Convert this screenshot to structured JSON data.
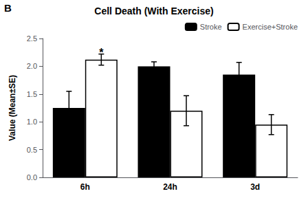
{
  "chart_data": {
    "type": "bar",
    "title": "Cell Death (With Exercise)",
    "ylabel": "Value (Mean±SE)",
    "categories": [
      "6h",
      "24h",
      "3d"
    ],
    "series": [
      {
        "name": "Stroke",
        "color": "#000000",
        "values": [
          1.25,
          2.0,
          1.85
        ],
        "errors": [
          0.3,
          0.08,
          0.22
        ]
      },
      {
        "name": "Exercise+Stroke",
        "color": "#ffffff",
        "values": [
          2.12,
          1.2,
          0.95
        ],
        "errors": [
          0.1,
          0.27,
          0.18
        ]
      }
    ],
    "annotations": [
      {
        "text": "B"
      },
      {
        "text": "*",
        "series": "Exercise+Stroke",
        "category": "6h"
      }
    ],
    "ylim": [
      0.0,
      2.5
    ],
    "yticks": [
      {
        "value": 0.0,
        "label": "0.0"
      },
      {
        "value": 0.5,
        "label": "0.5"
      },
      {
        "value": 1.0,
        "label": "1.0"
      },
      {
        "value": 1.5,
        "label": "1.5"
      },
      {
        "value": 2.0,
        "label": "2.0"
      },
      {
        "value": 2.5,
        "label": "2.5"
      }
    ],
    "grid": false,
    "legend": "upper right"
  }
}
